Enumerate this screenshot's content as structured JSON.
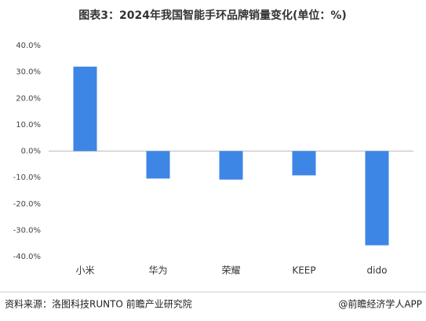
{
  "chart_data": {
    "type": "bar",
    "title": "图表3：2024年我国智能手环品牌销量变化(单位：%)",
    "categories": [
      "小米",
      "华为",
      "荣耀",
      "KEEP",
      "dido"
    ],
    "values": [
      32,
      -10.4,
      -10.8,
      -9.2,
      -35.7
    ],
    "color": "#3d86e6",
    "ylim": [
      -40,
      40
    ],
    "yticks": [
      {
        "value": -40,
        "label": "-40.0%"
      },
      {
        "value": -30,
        "label": "-30.0%"
      },
      {
        "value": -20,
        "label": "-20.0%"
      },
      {
        "value": -10,
        "label": "-10.0%"
      },
      {
        "value": 0,
        "label": "0.0%"
      },
      {
        "value": 10,
        "label": "10.0%"
      },
      {
        "value": 20,
        "label": "20.0%"
      },
      {
        "value": 30,
        "label": "30.0%"
      },
      {
        "value": 40,
        "label": "40.0%"
      }
    ],
    "grid": false,
    "source": "资料来源：洛图科技RUNTO 前瞻产业研究院",
    "credit": "@前瞻经济学人APP"
  }
}
